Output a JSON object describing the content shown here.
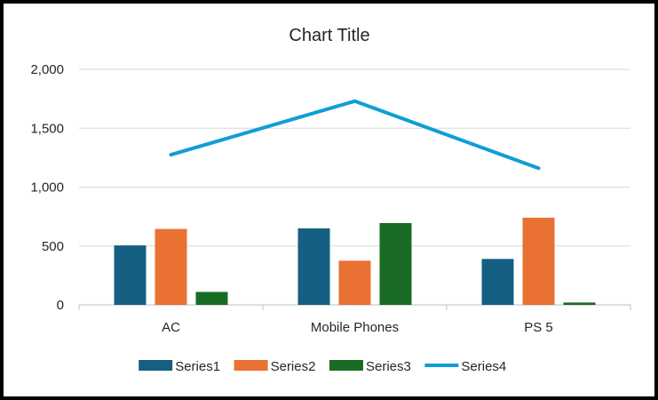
{
  "chart_data": {
    "type": "bar",
    "title": "Chart Title",
    "categories": [
      "AC",
      "Mobile Phones",
      "PS 5"
    ],
    "series": [
      {
        "name": "Series1",
        "type": "bar",
        "color": "#156082",
        "values": [
          505,
          650,
          390
        ]
      },
      {
        "name": "Series2",
        "type": "bar",
        "color": "#E97132",
        "values": [
          645,
          375,
          740
        ]
      },
      {
        "name": "Series3",
        "type": "bar",
        "color": "#196B24",
        "values": [
          110,
          695,
          20
        ]
      },
      {
        "name": "Series4",
        "type": "line",
        "color": "#0F9ED5",
        "values": [
          1275,
          1730,
          1160
        ]
      }
    ],
    "y_ticks": [
      0,
      500,
      1000,
      1500,
      2000
    ],
    "y_tick_labels": [
      "0",
      "500",
      "1,000",
      "1,500",
      "2,000"
    ],
    "ylim": [
      0,
      2000
    ],
    "grid": true,
    "legend": "bottom"
  }
}
